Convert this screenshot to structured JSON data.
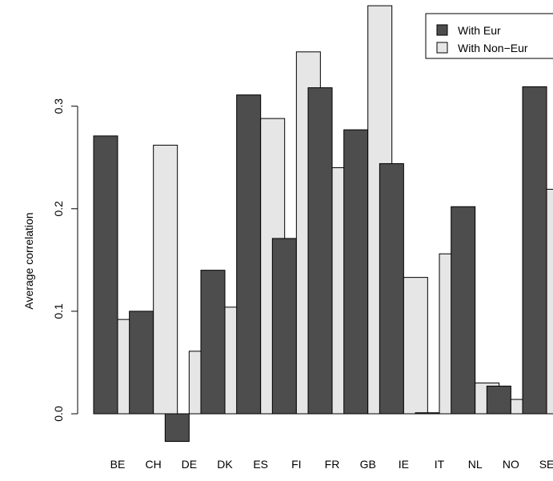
{
  "chart_data": {
    "type": "bar",
    "title": "",
    "xlabel": "",
    "ylabel": "Average correlation",
    "categories": [
      "BE",
      "CH",
      "DE",
      "DK",
      "ES",
      "FI",
      "FR",
      "GB",
      "IE",
      "IT",
      "NL",
      "NO",
      "SE"
    ],
    "series": [
      {
        "name": "With Eur",
        "color": "#4d4d4d",
        "values": [
          0.271,
          0.1,
          -0.027,
          0.14,
          0.311,
          0.171,
          0.318,
          0.277,
          0.244,
          0.001,
          0.202,
          0.027,
          0.319
        ]
      },
      {
        "name": "With Non−Eur",
        "color": "#e6e6e6",
        "values": [
          0.092,
          0.262,
          0.061,
          0.104,
          0.288,
          0.353,
          0.24,
          0.398,
          0.133,
          0.156,
          0.03,
          0.014,
          0.219
        ]
      }
    ],
    "y_ticks": [
      "0.0",
      "0.1",
      "0.2",
      "0.3"
    ],
    "ylim": [
      -0.03,
      0.4
    ],
    "legend_position": "top-right",
    "grid": false
  }
}
